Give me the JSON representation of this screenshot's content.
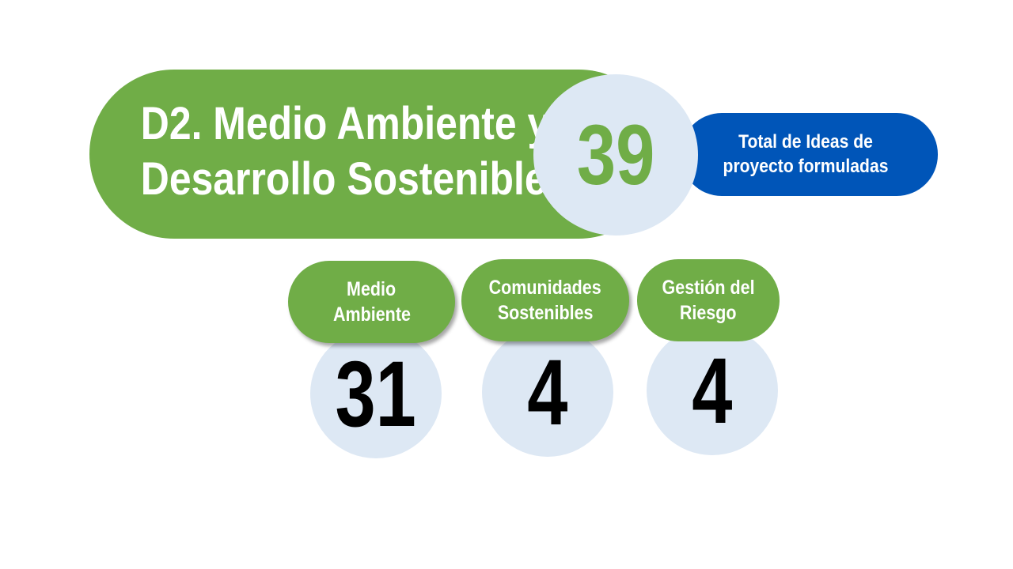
{
  "header": {
    "title_line1": "D2. Medio Ambiente y",
    "title_line2": "Desarrollo Sostenible",
    "total_value": "39",
    "total_label_line1": "Total de Ideas de",
    "total_label_line2": "proyecto formuladas"
  },
  "categories": [
    {
      "label_line1": "Medio",
      "label_line2": "Ambiente",
      "value": "31"
    },
    {
      "label_line1": "Comunidades",
      "label_line2": "Sostenibles",
      "value": "4"
    },
    {
      "label_line1": "Gestión del",
      "label_line2": "Riesgo",
      "value": "4"
    }
  ],
  "colors": {
    "green": "#70ad47",
    "light_blue": "#dde8f4",
    "blue": "#0055b8"
  }
}
